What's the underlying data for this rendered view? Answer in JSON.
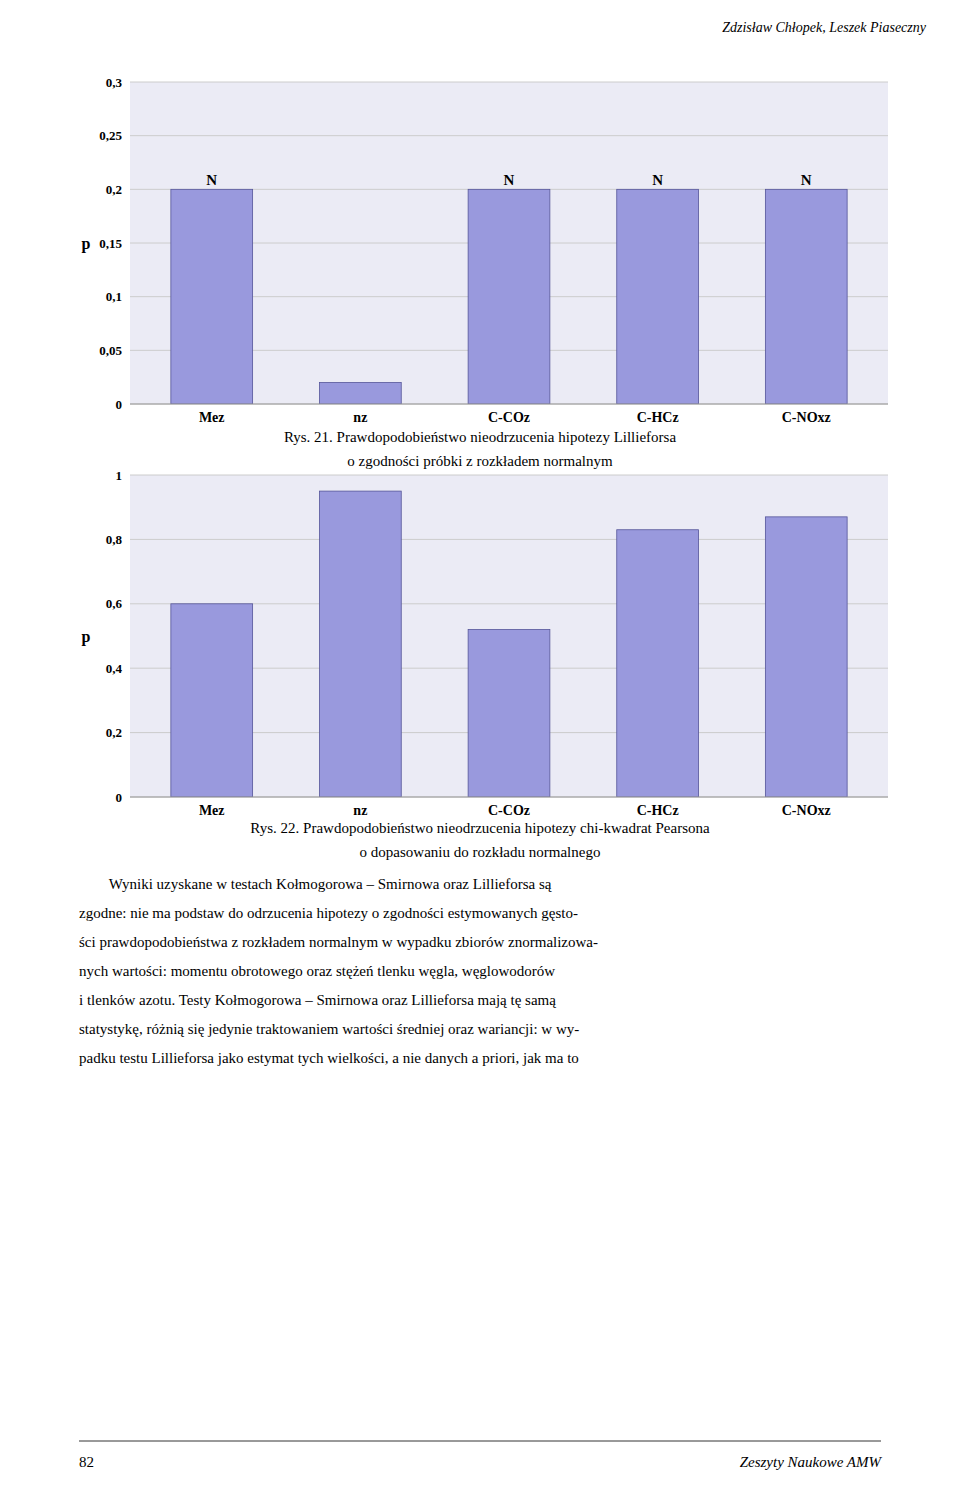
{
  "header": "Zdzisław Chłopek, Leszek Piaseczny",
  "chart_data": [
    {
      "type": "bar",
      "categories": [
        "Mez",
        "nz",
        "C-COz",
        "C-HCz",
        "C-NOxz"
      ],
      "values": [
        0.2,
        0.02,
        0.2,
        0.2,
        0.2
      ],
      "color": "#9999dd",
      "ylim": [
        0,
        0.3
      ],
      "yticks": [
        0,
        {
          "value": 0.05,
          "label": "0,05"
        },
        {
          "value": 0.1,
          "label": "0,1"
        },
        {
          "value": 0.15,
          "label": "0,15"
        },
        {
          "value": 0.2,
          "label": "0,2"
        },
        {
          "value": 0.25,
          "label": "0,25"
        },
        {
          "value": 0.3,
          "label": "0,3"
        }
      ],
      "grid": true,
      "ylabel": "p",
      "annotations": [
        {
          "text": "N",
          "x": "Mez"
        },
        {
          "text": "N",
          "x": "C-COz"
        },
        {
          "text": "N",
          "x": "C-HCz"
        },
        {
          "text": "N",
          "x": "C-NOxz"
        }
      ],
      "caption_lines": [
        "Rys. 21. Prawdopodobieństwo nieodrzucenia hipotezy Lillieforsa",
        "o zgodności próbki z rozkładem normalnym"
      ]
    },
    {
      "type": "bar",
      "categories": [
        "Mez",
        "nz",
        "C-COz",
        "C-HCz",
        "C-NOxz"
      ],
      "values": [
        0.6,
        0.95,
        0.52,
        0.83,
        0.87
      ],
      "color": "#9999dd",
      "ylim": [
        0,
        1.0
      ],
      "yticks": [
        0,
        {
          "value": 0.2,
          "label": "0,2"
        },
        {
          "value": 0.4,
          "label": "0,4"
        },
        {
          "value": 0.6,
          "label": "0,6"
        },
        {
          "value": 0.8,
          "label": "0,8"
        },
        1
      ],
      "grid": true,
      "ylabel": "p",
      "caption_lines": [
        "Rys. 22. Prawdopodobieństwo nieodrzucenia hipotezy chi-kwadrat Pearsona",
        "o dopasowaniu do rozkładu normalnego"
      ]
    }
  ],
  "body_lines": [
    "        Wyniki uzyskane w testach Kołmogorowa – Smirnowa oraz Lillieforsa są",
    "zgodne: nie ma podstaw do odrzucenia hipotezy o zgodności estymowanych gęsto-",
    "ści prawdopodobieństwa z rozkładem normalnym w wypadku zbiorów znormalizowa-",
    "nych wartości: momentu obrotowego oraz stężeń tlenku węgla, węglowodorów",
    "i tlenków azotu. Testy Kołmogorowa – Smirnowa oraz Lillieforsa mają tę samą",
    "statystykę, różnią się jedynie traktowaniem wartości średniej oraz wariancji: w wy-",
    "padku testu Lillieforsa jako estymat tych wielkości, a nie danych a priori, jak ma to"
  ],
  "footer_left": "82",
  "footer_right": "Zeszyty Naukowe AMW"
}
